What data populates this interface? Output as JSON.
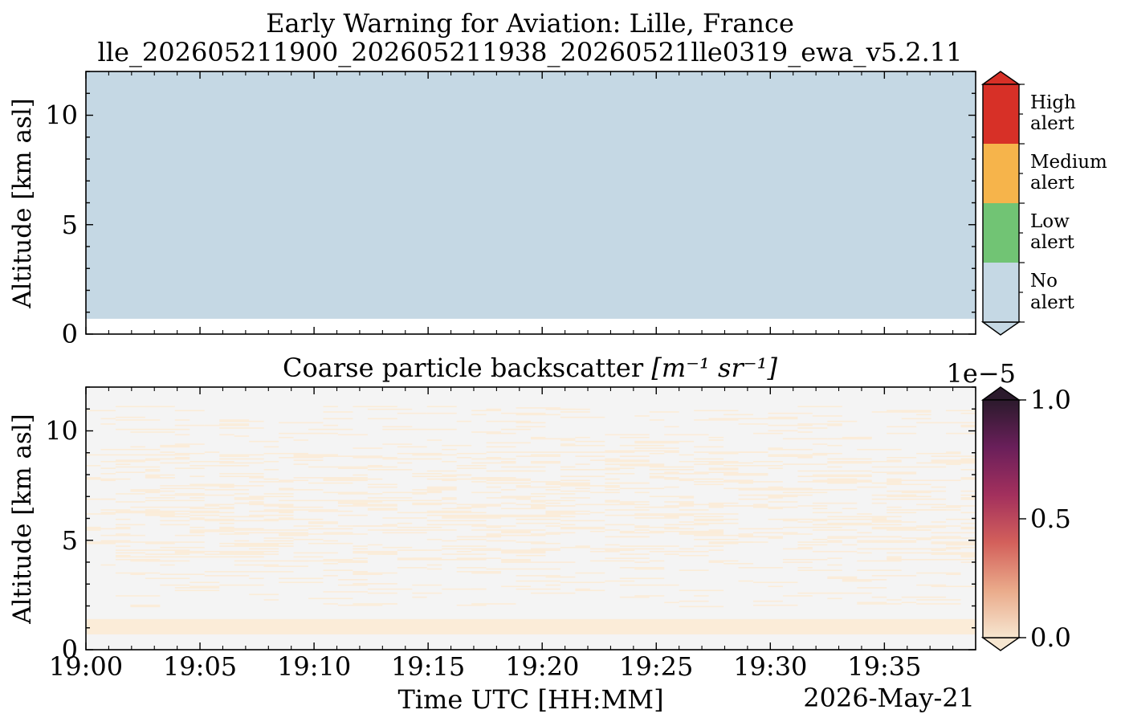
{
  "figure": {
    "title": "Early Warning for Aviation: Lille, France",
    "subtitle": "lle_202605211900_202605211938_20260521lle0319_ewa_v5.2.11",
    "xlabel": "Time UTC [HH:MM]",
    "date_label": "2026-May-21"
  },
  "chart_data": [
    {
      "type": "heatmap",
      "title": "",
      "ylabel": "Altitude [km asl]",
      "ylim": [
        0,
        12
      ],
      "xlim_minutes_after_19_00": [
        0,
        39
      ],
      "x_ticks": [
        "19:00",
        "19:05",
        "19:10",
        "19:15",
        "19:20",
        "19:25",
        "19:30",
        "19:35"
      ],
      "y_ticks": [
        0,
        5,
        10
      ],
      "y_tick_labels": [
        "0",
        "5",
        "10"
      ],
      "categories": [
        "No alert",
        "Low alert",
        "Medium alert",
        "High alert"
      ],
      "category_labels": [
        [
          "No",
          "alert"
        ],
        [
          "Low",
          "alert"
        ],
        [
          "Medium",
          "alert"
        ],
        [
          "High",
          "alert"
        ]
      ],
      "category_colors": [
        "#c5d8e4",
        "#71c474",
        "#f6b44b",
        "#d73027"
      ],
      "observed_category": "No alert",
      "observed_altitude_range_km": [
        0.7,
        12
      ]
    },
    {
      "type": "heatmap",
      "title_prefix": "Coarse particle backscatter ",
      "title_math": "[m⁻¹ sr⁻¹]",
      "ylabel": "Altitude [km asl]",
      "ylim": [
        0,
        12
      ],
      "xlim_minutes_after_19_00": [
        0,
        39
      ],
      "x_ticks": [
        "19:00",
        "19:05",
        "19:10",
        "19:15",
        "19:20",
        "19:25",
        "19:30",
        "19:35"
      ],
      "y_ticks": [
        0,
        5,
        10
      ],
      "y_tick_labels": [
        "0",
        "5",
        "10"
      ],
      "colorbar": {
        "range": [
          0,
          1.0
        ],
        "ticks": [
          0,
          0.5,
          1.0
        ],
        "tick_labels": [
          "0.0",
          "0.5",
          "1.0"
        ],
        "offset_label": "1e−5",
        "colors": [
          "#f6e6d0",
          "#eaaa8a",
          "#d3605b",
          "#a3305d",
          "#6a1f5a",
          "#2b1a2c"
        ]
      },
      "background_color": "#f4f4f4",
      "low_value_color": "#fbecd8",
      "data_summary": "Near-zero backscatter (≈0) throughout; thin weak layer 0.7–1.4 km asl, scattered faint returns 2–11 km"
    }
  ]
}
